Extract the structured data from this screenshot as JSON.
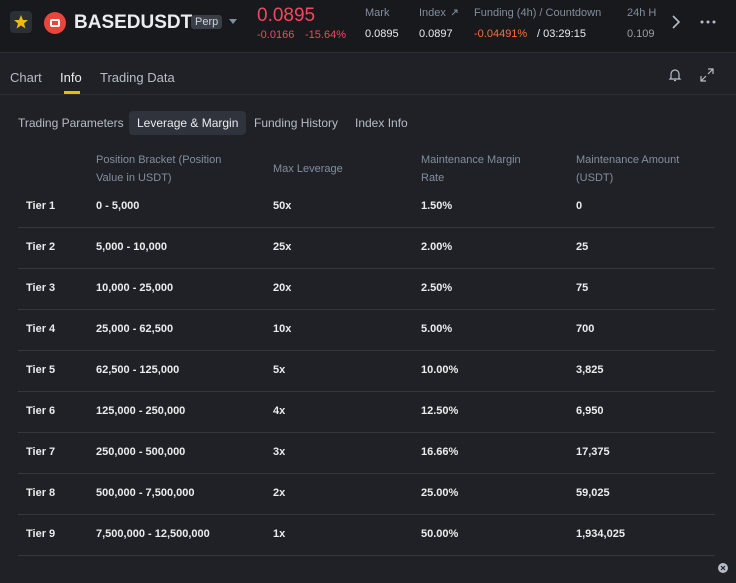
{
  "header": {
    "symbol": "BASEDUSDT",
    "badge": "Perp",
    "price": "0.0895",
    "change": "-0.0166",
    "change_pct": "-15.64%",
    "stats": [
      {
        "label": "Mark",
        "value": "0.0895"
      },
      {
        "label": "Index",
        "value": "0.0897"
      },
      {
        "label": "Funding (4h) / Countdown",
        "value": "-0.04491%",
        "countdown": "/ 03:29:15"
      },
      {
        "label": "24h H",
        "value": "0.109"
      }
    ]
  },
  "tabs": [
    "Chart",
    "Info",
    "Trading Data"
  ],
  "subtabs": [
    "Trading Parameters",
    "Leverage & Margin",
    "Funding History",
    "Index Info"
  ],
  "table": {
    "columns": [
      "Position Bracket (Position Value in USDT)",
      "Max Leverage",
      "Maintenance Margin Rate",
      "Maintenance Amount (USDT)"
    ],
    "rows": [
      [
        "Tier 1",
        "0 - 5,000",
        "50x",
        "1.50%",
        "0"
      ],
      [
        "Tier 2",
        "5,000 - 10,000",
        "25x",
        "2.00%",
        "25"
      ],
      [
        "Tier 3",
        "10,000 - 25,000",
        "20x",
        "2.50%",
        "75"
      ],
      [
        "Tier 4",
        "25,000 - 62,500",
        "10x",
        "5.00%",
        "700"
      ],
      [
        "Tier 5",
        "62,500 - 125,000",
        "5x",
        "10.00%",
        "3,825"
      ],
      [
        "Tier 6",
        "125,000 - 250,000",
        "4x",
        "12.50%",
        "6,950"
      ],
      [
        "Tier 7",
        "250,000 - 500,000",
        "3x",
        "16.66%",
        "17,375"
      ],
      [
        "Tier 8",
        "500,000 - 7,500,000",
        "2x",
        "25.00%",
        "59,025"
      ],
      [
        "Tier 9",
        "7,500,000 - 12,500,000",
        "1x",
        "50.00%",
        "1,934,025"
      ]
    ]
  }
}
